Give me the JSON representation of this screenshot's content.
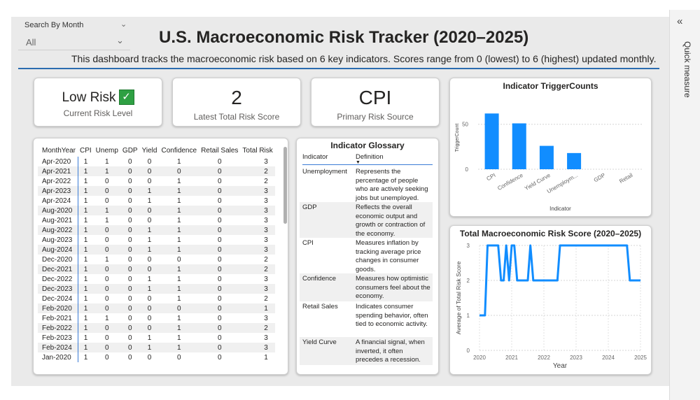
{
  "slicer": {
    "label": "Search By Month",
    "value": "All"
  },
  "header": {
    "title": "U.S. Macroeconomic Risk Tracker (2020–2025)",
    "subtitle": "This dashboard tracks the macroeconomic risk based on 6 key indicators. Scores range from 0 (lowest) to 6 (highest) updated monthly."
  },
  "side_pane": {
    "label": "Quick measure"
  },
  "cards": {
    "risk_level": {
      "value": "Low Risk",
      "label": "Current Risk Level",
      "icon": "check-icon"
    },
    "total_score": {
      "value": "2",
      "label": "Latest Total Risk Score"
    },
    "primary_source": {
      "value": "CPI",
      "label": "Primary Risk Source"
    }
  },
  "table": {
    "columns": [
      "MonthYear",
      "CPI",
      "Unemp",
      "GDP",
      "Yield",
      "Confidence",
      "Retail Sales",
      "Total Risk"
    ],
    "rows": [
      [
        "Apr-2020",
        "1",
        "1",
        "0",
        "0",
        "1",
        "0",
        "3"
      ],
      [
        "Apr-2021",
        "1",
        "1",
        "0",
        "0",
        "0",
        "0",
        "2"
      ],
      [
        "Apr-2022",
        "1",
        "0",
        "0",
        "0",
        "1",
        "0",
        "2"
      ],
      [
        "Apr-2023",
        "1",
        "0",
        "0",
        "1",
        "1",
        "0",
        "3"
      ],
      [
        "Apr-2024",
        "1",
        "0",
        "0",
        "1",
        "1",
        "0",
        "3"
      ],
      [
        "Aug-2020",
        "1",
        "1",
        "0",
        "0",
        "1",
        "0",
        "3"
      ],
      [
        "Aug-2021",
        "1",
        "1",
        "0",
        "0",
        "1",
        "0",
        "3"
      ],
      [
        "Aug-2022",
        "1",
        "0",
        "0",
        "1",
        "1",
        "0",
        "3"
      ],
      [
        "Aug-2023",
        "1",
        "0",
        "0",
        "1",
        "1",
        "0",
        "3"
      ],
      [
        "Aug-2024",
        "1",
        "0",
        "0",
        "1",
        "1",
        "0",
        "3"
      ],
      [
        "Dec-2020",
        "1",
        "1",
        "0",
        "0",
        "0",
        "0",
        "2"
      ],
      [
        "Dec-2021",
        "1",
        "0",
        "0",
        "0",
        "1",
        "0",
        "2"
      ],
      [
        "Dec-2022",
        "1",
        "0",
        "0",
        "1",
        "1",
        "0",
        "3"
      ],
      [
        "Dec-2023",
        "1",
        "0",
        "0",
        "1",
        "1",
        "0",
        "3"
      ],
      [
        "Dec-2024",
        "1",
        "0",
        "0",
        "0",
        "1",
        "0",
        "2"
      ],
      [
        "Feb-2020",
        "1",
        "0",
        "0",
        "0",
        "0",
        "0",
        "1"
      ],
      [
        "Feb-2021",
        "1",
        "1",
        "0",
        "0",
        "1",
        "0",
        "3"
      ],
      [
        "Feb-2022",
        "1",
        "0",
        "0",
        "0",
        "1",
        "0",
        "2"
      ],
      [
        "Feb-2023",
        "1",
        "0",
        "0",
        "1",
        "1",
        "0",
        "3"
      ],
      [
        "Feb-2024",
        "1",
        "0",
        "0",
        "1",
        "1",
        "0",
        "3"
      ],
      [
        "Jan-2020",
        "1",
        "0",
        "0",
        "0",
        "0",
        "0",
        "1"
      ]
    ]
  },
  "glossary": {
    "title": "Indicator Glossary",
    "col_indicator": "Indicator",
    "col_definition": "Definition",
    "rows": [
      {
        "indicator": "Unemployment",
        "definition": "Represents the percentage of people who are actively seeking jobs but unemployed."
      },
      {
        "indicator": "GDP",
        "definition": "Reflects the overall economic output and growth or contraction of the economy."
      },
      {
        "indicator": "CPI",
        "definition": "Measures inflation by tracking average price changes in consumer goods."
      },
      {
        "indicator": "Confidence",
        "definition": "Measures how optimistic consumers feel about the economy."
      },
      {
        "indicator": "Retail Sales",
        "definition": "Indicates consumer spending behavior, often tied to economic activity."
      },
      {
        "indicator": "Yield Curve",
        "definition": "A financial signal, when inverted, it often precedes a recession."
      }
    ]
  },
  "colors": {
    "accent": "#118dff",
    "header_rule": "#2b6cb0",
    "check": "#2ea043"
  },
  "chart_data": [
    {
      "type": "bar",
      "title": "Indicator TriggerCounts",
      "xlabel": "Indicator",
      "ylabel": "TriggerCount",
      "categories": [
        "CPI",
        "Confidence",
        "Yield Curve",
        "Unemploym...",
        "GDP",
        "Retail"
      ],
      "values": [
        62,
        51,
        26,
        18,
        0,
        0
      ],
      "yticks": [
        0,
        50
      ],
      "ylim": [
        0,
        70
      ],
      "grid": true
    },
    {
      "type": "line",
      "title": "Total Macroeconomic Risk Score (2020–2025)",
      "xlabel": "Year",
      "ylabel": "Average of Total Risk Score",
      "xticks": [
        "2020",
        "2021",
        "2022",
        "2023",
        "2024",
        "2025"
      ],
      "yticks": [
        0,
        1,
        2,
        3
      ],
      "ylim": [
        0,
        3
      ],
      "xlim": [
        2020,
        2025
      ],
      "grid": true,
      "points": [
        [
          2020.0,
          1
        ],
        [
          2020.17,
          1
        ],
        [
          2020.25,
          3
        ],
        [
          2020.58,
          3
        ],
        [
          2020.67,
          2
        ],
        [
          2020.75,
          2
        ],
        [
          2020.83,
          3
        ],
        [
          2020.92,
          2
        ],
        [
          2021.0,
          3
        ],
        [
          2021.08,
          3
        ],
        [
          2021.17,
          2
        ],
        [
          2021.5,
          2
        ],
        [
          2021.58,
          3
        ],
        [
          2021.67,
          2
        ],
        [
          2022.42,
          2
        ],
        [
          2022.5,
          3
        ],
        [
          2024.58,
          3
        ],
        [
          2024.67,
          2
        ],
        [
          2025.0,
          2
        ]
      ]
    }
  ]
}
